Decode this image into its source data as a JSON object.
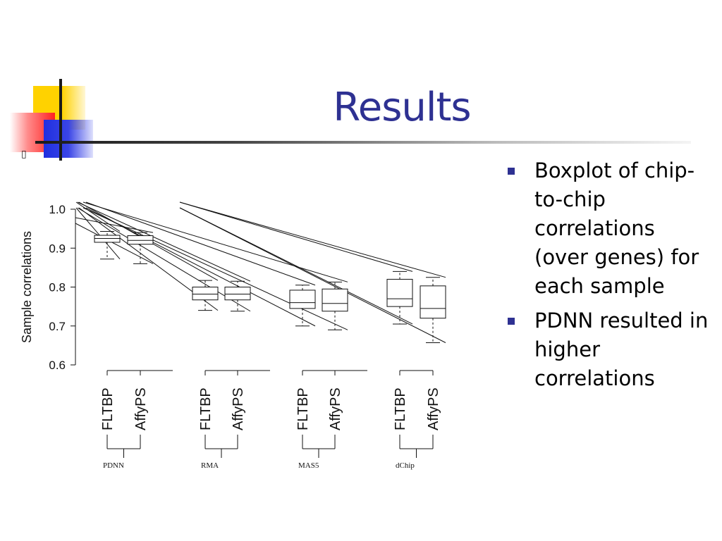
{
  "slide": {
    "title": "Results",
    "glyph": "▯",
    "bullets": [
      {
        "text": "Boxplot of chip-to-chip correlations (over genes) for each sample"
      },
      {
        "text": "PDNN resulted in higher correlations"
      }
    ],
    "colors": {
      "title": "#2e3192",
      "bullet": "#2e3192"
    }
  },
  "chart_data": {
    "type": "boxplot",
    "ylabel": "Sample correlations",
    "ylim": [
      0.6,
      1.0
    ],
    "yticks": [
      "0.6",
      "0.7",
      "0.8",
      "0.9",
      "1.0"
    ],
    "groups": [
      "PDNN",
      "RMA",
      "MAS5",
      "dChip"
    ],
    "categories": [
      "FLTBP",
      "AffyPS"
    ],
    "boxes": [
      {
        "group": "PDNN",
        "label": "FLTBP",
        "whisker_low": 0.872,
        "q1": 0.915,
        "median": 0.925,
        "q3": 0.933,
        "whisker_high": 0.943
      },
      {
        "group": "PDNN",
        "label": "AffyPS",
        "whisker_low": 0.86,
        "q1": 0.91,
        "median": 0.92,
        "q3": 0.932,
        "whisker_high": 0.94
      },
      {
        "group": "RMA",
        "label": "FLTBP",
        "whisker_low": 0.74,
        "q1": 0.767,
        "median": 0.782,
        "q3": 0.8,
        "whisker_high": 0.817
      },
      {
        "group": "RMA",
        "label": "AffyPS",
        "whisker_low": 0.738,
        "q1": 0.767,
        "median": 0.782,
        "q3": 0.8,
        "whisker_high": 0.815
      },
      {
        "group": "MAS5",
        "label": "FLTBP",
        "whisker_low": 0.7,
        "q1": 0.745,
        "median": 0.76,
        "q3": 0.792,
        "whisker_high": 0.805
      },
      {
        "group": "MAS5",
        "label": "AffyPS",
        "whisker_low": 0.69,
        "q1": 0.738,
        "median": 0.758,
        "q3": 0.795,
        "whisker_high": 0.813
      },
      {
        "group": "dChip",
        "label": "FLTBP",
        "whisker_low": 0.705,
        "q1": 0.75,
        "median": 0.77,
        "q3": 0.82,
        "whisker_high": 0.84
      },
      {
        "group": "dChip",
        "label": "AffyPS",
        "whisker_low": 0.657,
        "q1": 0.72,
        "median": 0.745,
        "q3": 0.803,
        "whisker_high": 0.825
      }
    ],
    "connector_lines": true,
    "grid": false
  }
}
